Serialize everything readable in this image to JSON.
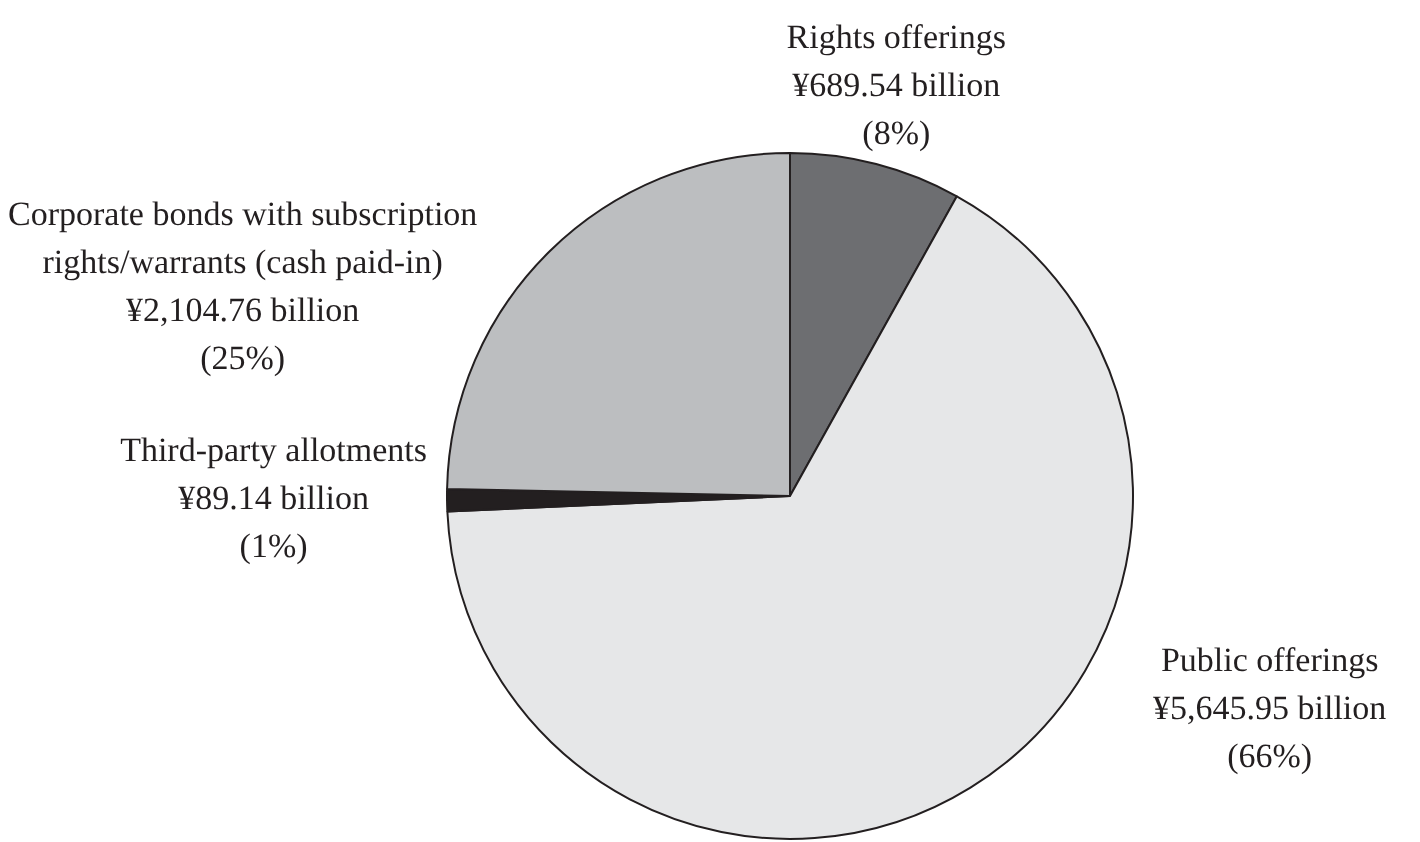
{
  "chart_data": {
    "type": "pie",
    "categories": [
      "Rights offerings",
      "Public offerings",
      "Third-party allotments",
      "Corporate bonds with subscription rights/warrants (cash paid-in)"
    ],
    "values": [
      689.54,
      5645.95,
      89.14,
      2104.76
    ],
    "value_labels": [
      "¥689.54 billion",
      "¥5,645.95 billion",
      "¥89.14 billion",
      "¥2,104.76 billion"
    ],
    "annotations": [
      {
        "text": "(8%)",
        "x": "Rights offerings"
      },
      {
        "text": "(66%)",
        "x": "Public offerings"
      },
      {
        "text": "(1%)",
        "x": "Third-party allotments"
      },
      {
        "text": "(25%)",
        "x": "Corporate bonds with subscription rights/warrants (cash paid-in)"
      }
    ],
    "colors": [
      "#6d6e71",
      "#e6e7e8",
      "#231f20",
      "#bcbec0"
    ],
    "legend": false
  }
}
